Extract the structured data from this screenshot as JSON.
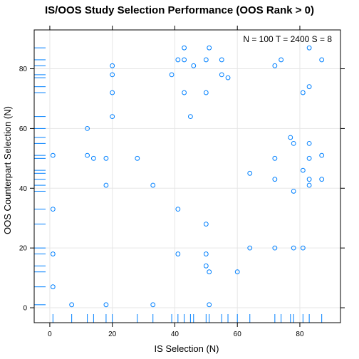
{
  "chart_data": {
    "type": "scatter",
    "title": "IS/OOS Study Selection Performance (OOS Rank > 0)",
    "xlabel": "IS Selection (N)",
    "ylabel": "OOS Counterpart Selection (N)",
    "annotation": "N = 100  T = 2400  S = 8",
    "xlim": [
      -5,
      93
    ],
    "ylim": [
      -5,
      93
    ],
    "x_ticks": [
      0,
      20,
      40,
      60,
      80
    ],
    "y_ticks": [
      0,
      20,
      40,
      60,
      80
    ],
    "grid": true,
    "rug": true,
    "colors": {
      "points": "#0080ff",
      "rug": "#0080ff",
      "grid": "#e6e6e6",
      "frame": "#000000"
    },
    "points": [
      {
        "x": 1,
        "y": 51
      },
      {
        "x": 1,
        "y": 33
      },
      {
        "x": 1,
        "y": 18
      },
      {
        "x": 1,
        "y": 7
      },
      {
        "x": 7,
        "y": 1
      },
      {
        "x": 12,
        "y": 60
      },
      {
        "x": 12,
        "y": 51
      },
      {
        "x": 14,
        "y": 50
      },
      {
        "x": 18,
        "y": 50
      },
      {
        "x": 18,
        "y": 41
      },
      {
        "x": 18,
        "y": 1
      },
      {
        "x": 20,
        "y": 81
      },
      {
        "x": 20,
        "y": 78
      },
      {
        "x": 20,
        "y": 72
      },
      {
        "x": 20,
        "y": 64
      },
      {
        "x": 28,
        "y": 50
      },
      {
        "x": 33,
        "y": 41
      },
      {
        "x": 33,
        "y": 1
      },
      {
        "x": 39,
        "y": 78
      },
      {
        "x": 41,
        "y": 83
      },
      {
        "x": 41,
        "y": 33
      },
      {
        "x": 41,
        "y": 18
      },
      {
        "x": 43,
        "y": 87
      },
      {
        "x": 43,
        "y": 83
      },
      {
        "x": 43,
        "y": 72
      },
      {
        "x": 45,
        "y": 64
      },
      {
        "x": 46,
        "y": 81
      },
      {
        "x": 50,
        "y": 83
      },
      {
        "x": 50,
        "y": 72
      },
      {
        "x": 50,
        "y": 28
      },
      {
        "x": 50,
        "y": 18
      },
      {
        "x": 50,
        "y": 14
      },
      {
        "x": 51,
        "y": 87
      },
      {
        "x": 51,
        "y": 12
      },
      {
        "x": 51,
        "y": 1
      },
      {
        "x": 55,
        "y": 83
      },
      {
        "x": 55,
        "y": 78
      },
      {
        "x": 57,
        "y": 77
      },
      {
        "x": 60,
        "y": 12
      },
      {
        "x": 64,
        "y": 45
      },
      {
        "x": 64,
        "y": 20
      },
      {
        "x": 72,
        "y": 81
      },
      {
        "x": 72,
        "y": 50
      },
      {
        "x": 72,
        "y": 43
      },
      {
        "x": 72,
        "y": 20
      },
      {
        "x": 74,
        "y": 83
      },
      {
        "x": 77,
        "y": 57
      },
      {
        "x": 78,
        "y": 55
      },
      {
        "x": 78,
        "y": 39
      },
      {
        "x": 78,
        "y": 20
      },
      {
        "x": 81,
        "y": 72
      },
      {
        "x": 81,
        "y": 46
      },
      {
        "x": 81,
        "y": 20
      },
      {
        "x": 83,
        "y": 87
      },
      {
        "x": 83,
        "y": 74
      },
      {
        "x": 83,
        "y": 55
      },
      {
        "x": 83,
        "y": 50
      },
      {
        "x": 83,
        "y": 43
      },
      {
        "x": 83,
        "y": 41
      },
      {
        "x": 87,
        "y": 83
      },
      {
        "x": 87,
        "y": 51
      },
      {
        "x": 87,
        "y": 43
      }
    ]
  }
}
